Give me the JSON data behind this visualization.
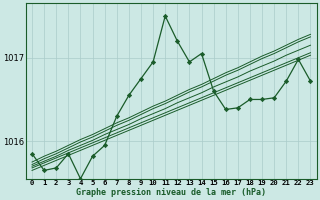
{
  "title": "Graphe pression niveau de la mer (hPa)",
  "background_color": "#cce8e4",
  "grid_color": "#aaccca",
  "line_color": "#1a5c2a",
  "yticks": [
    1016,
    1017
  ],
  "ylim": [
    1015.55,
    1017.65
  ],
  "xlim": [
    -0.5,
    23.5
  ],
  "x_labels": [
    "0",
    "1",
    "2",
    "3",
    "4",
    "5",
    "6",
    "7",
    "8",
    "9",
    "10",
    "11",
    "12",
    "13",
    "14",
    "15",
    "16",
    "17",
    "18",
    "19",
    "20",
    "21",
    "22",
    "23"
  ],
  "main_series": [
    1015.85,
    1015.65,
    1015.68,
    1015.85,
    1015.55,
    1015.82,
    1015.95,
    1016.3,
    1016.55,
    1016.75,
    1016.95,
    1017.5,
    1017.2,
    1016.95,
    1017.05,
    1016.6,
    1016.38,
    1016.4,
    1016.5,
    1016.5,
    1016.52,
    1016.72,
    1016.98,
    1016.72
  ],
  "trend_series": [
    [
      1015.75,
      1015.82,
      1015.88,
      1015.95,
      1016.02,
      1016.08,
      1016.15,
      1016.22,
      1016.28,
      1016.35,
      1016.42,
      1016.48,
      1016.55,
      1016.62,
      1016.68,
      1016.75,
      1016.82,
      1016.88,
      1016.95,
      1017.02,
      1017.08,
      1017.15,
      1017.22,
      1017.28
    ],
    [
      1015.72,
      1015.79,
      1015.85,
      1015.92,
      1015.99,
      1016.05,
      1016.12,
      1016.19,
      1016.25,
      1016.32,
      1016.39,
      1016.45,
      1016.52,
      1016.59,
      1016.65,
      1016.72,
      1016.79,
      1016.85,
      1016.92,
      1016.99,
      1017.05,
      1017.12,
      1017.19,
      1017.25
    ],
    [
      1015.7,
      1015.76,
      1015.82,
      1015.89,
      1015.95,
      1016.01,
      1016.08,
      1016.14,
      1016.2,
      1016.27,
      1016.33,
      1016.39,
      1016.46,
      1016.52,
      1016.58,
      1016.65,
      1016.71,
      1016.77,
      1016.84,
      1016.9,
      1016.96,
      1017.03,
      1017.09,
      1017.15
    ],
    [
      1015.68,
      1015.74,
      1015.8,
      1015.86,
      1015.92,
      1015.98,
      1016.04,
      1016.1,
      1016.16,
      1016.22,
      1016.28,
      1016.34,
      1016.4,
      1016.46,
      1016.52,
      1016.58,
      1016.64,
      1016.7,
      1016.76,
      1016.82,
      1016.88,
      1016.94,
      1017.0,
      1017.06
    ],
    [
      1015.65,
      1015.71,
      1015.77,
      1015.83,
      1015.89,
      1015.95,
      1016.01,
      1016.07,
      1016.13,
      1016.19,
      1016.25,
      1016.31,
      1016.37,
      1016.43,
      1016.49,
      1016.55,
      1016.61,
      1016.67,
      1016.73,
      1016.79,
      1016.85,
      1016.91,
      1016.97,
      1017.03
    ]
  ]
}
